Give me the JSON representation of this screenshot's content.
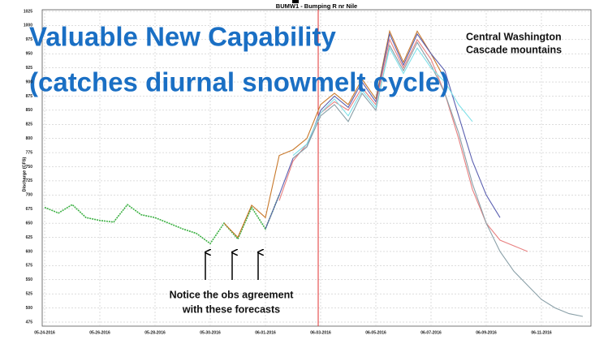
{
  "chart_data": {
    "type": "line",
    "title": "BUMW1 - Bumping R nr Nile",
    "ylabel": "Discharge (CFS)",
    "overlay_title": [
      "Valuable New Capability",
      "(catches diurnal snowmelt cycle)"
    ],
    "region": [
      "Central Washington",
      "Cascade mountains"
    ],
    "annotation": [
      "Notice the obs agreement",
      "with these forecasts"
    ],
    "xlim": [
      "2016-05-24T00",
      "2016-06-12T12"
    ],
    "xticks": [
      {
        "value": "2016-05-24T00",
        "label": "05-24-2016"
      },
      {
        "value": "2016-05-26T00",
        "label": "05-26-2016"
      },
      {
        "value": "2016-05-28T00",
        "label": "05-28-2016"
      },
      {
        "value": "2016-05-30T00",
        "label": "05-30-2016"
      },
      {
        "value": "2016-06-01T00",
        "label": "06-01-2016"
      },
      {
        "value": "2016-06-03T00",
        "label": "06-03-2016"
      },
      {
        "value": "2016-06-05T00",
        "label": "06-05-2016"
      },
      {
        "value": "2016-06-07T00",
        "label": "06-07-2016"
      },
      {
        "value": "2016-06-09T00",
        "label": "06-09-2016"
      },
      {
        "value": "2016-06-11T00",
        "label": "06-11-2016"
      }
    ],
    "ylim": [
      475,
      1025
    ],
    "yticks": [
      475,
      500,
      525,
      550,
      575,
      600,
      625,
      650,
      675,
      700,
      725,
      750,
      775,
      800,
      825,
      850,
      875,
      900,
      925,
      950,
      975,
      1000,
      1025
    ],
    "grid": true,
    "series": [
      {
        "color": "#3cb043",
        "x": [
          "2016-05-24T00",
          "2016-05-24T12",
          "2016-05-25T00",
          "2016-05-25T12",
          "2016-05-26T00",
          "2016-05-26T12",
          "2016-05-27T00",
          "2016-05-27T12",
          "2016-05-28T00",
          "2016-05-28T12",
          "2016-05-29T00",
          "2016-05-29T12",
          "2016-05-30T00",
          "2016-05-30T12",
          "2016-05-31T00",
          "2016-05-31T12",
          "2016-06-01T00",
          "2016-06-01T12"
        ],
        "values": [
          678,
          668,
          683,
          660,
          655,
          652,
          683,
          665,
          660,
          650,
          640,
          632,
          614,
          650,
          622,
          678,
          640,
          700
        ]
      },
      {
        "color": "#c8782a",
        "x": [
          "2016-05-30T12",
          "2016-05-31T00",
          "2016-05-31T12",
          "2016-06-01T00",
          "2016-06-01T12",
          "2016-06-02T00",
          "2016-06-02T12",
          "2016-06-03T00",
          "2016-06-03T12",
          "2016-06-04T00",
          "2016-06-04T12",
          "2016-06-05T00",
          "2016-06-05T12",
          "2016-06-06T00",
          "2016-06-06T12",
          "2016-06-07T00",
          "2016-06-07T12"
        ],
        "values": [
          650,
          625,
          682,
          660,
          770,
          780,
          800,
          860,
          880,
          860,
          905,
          870,
          990,
          935,
          990,
          950,
          905
        ]
      },
      {
        "color": "#5a5fb0",
        "x": [
          "2016-06-01T00",
          "2016-06-01T12",
          "2016-06-02T00",
          "2016-06-02T12",
          "2016-06-03T00",
          "2016-06-03T12",
          "2016-06-04T00",
          "2016-06-04T12",
          "2016-06-05T00",
          "2016-06-05T12",
          "2016-06-06T00",
          "2016-06-06T12",
          "2016-06-07T00",
          "2016-06-07T12",
          "2016-06-08T00",
          "2016-06-08T12",
          "2016-06-09T00",
          "2016-06-09T12"
        ],
        "values": [
          640,
          700,
          765,
          785,
          850,
          875,
          855,
          900,
          865,
          985,
          930,
          985,
          950,
          920,
          840,
          760,
          700,
          660
        ]
      },
      {
        "color": "#e88080",
        "x": [
          "2016-06-01T12",
          "2016-06-02T00",
          "2016-06-02T12",
          "2016-06-03T00",
          "2016-06-03T12",
          "2016-06-04T00",
          "2016-06-04T12",
          "2016-06-05T00",
          "2016-06-05T12",
          "2016-06-06T00",
          "2016-06-06T12",
          "2016-06-07T00",
          "2016-06-07T12",
          "2016-06-08T00",
          "2016-06-08T12",
          "2016-06-09T00",
          "2016-06-09T12",
          "2016-06-10T00",
          "2016-06-10T12"
        ],
        "values": [
          690,
          760,
          790,
          845,
          865,
          850,
          890,
          860,
          975,
          925,
          975,
          940,
          880,
          800,
          710,
          650,
          620,
          610,
          600
        ]
      },
      {
        "color": "#8aa0a8",
        "x": [
          "2016-06-02T00",
          "2016-06-02T12",
          "2016-06-03T00",
          "2016-06-03T12",
          "2016-06-04T00",
          "2016-06-04T12",
          "2016-06-05T00",
          "2016-06-05T12",
          "2016-06-06T00",
          "2016-06-06T12",
          "2016-06-07T00",
          "2016-06-07T12",
          "2016-06-08T00",
          "2016-06-08T12",
          "2016-06-09T00",
          "2016-06-09T12",
          "2016-06-10T00",
          "2016-06-10T12",
          "2016-06-11T00",
          "2016-06-11T12",
          "2016-06-12T00",
          "2016-06-12T12"
        ],
        "values": [
          765,
          785,
          840,
          860,
          830,
          880,
          850,
          965,
          920,
          970,
          930,
          880,
          810,
          720,
          650,
          600,
          565,
          540,
          515,
          500,
          490,
          485
        ]
      },
      {
        "color": "#7fe0e8",
        "x": [
          "2016-06-02T00",
          "2016-06-02T12",
          "2016-06-03T00",
          "2016-06-03T12",
          "2016-06-04T00",
          "2016-06-04T12",
          "2016-06-05T00",
          "2016-06-05T12",
          "2016-06-06T00",
          "2016-06-06T12",
          "2016-06-07T00",
          "2016-06-07T12",
          "2016-06-08T00",
          "2016-06-08T12"
        ],
        "values": [
          770,
          790,
          845,
          870,
          840,
          885,
          855,
          960,
          915,
          960,
          925,
          900,
          860,
          830
        ]
      }
    ]
  }
}
